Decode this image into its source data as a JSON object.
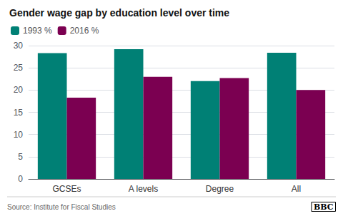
{
  "chart_data": {
    "type": "bar",
    "title": "Gender wage gap by education level over time",
    "categories": [
      "GCSEs",
      "A levels",
      "Degree",
      "All"
    ],
    "series": [
      {
        "name": "1993 %",
        "color": "#008075",
        "values": [
          28.3,
          29.2,
          22.0,
          28.4
        ]
      },
      {
        "name": "2016 %",
        "color": "#7b0051",
        "values": [
          18.3,
          23.0,
          22.7,
          20.0
        ]
      }
    ],
    "ylim": [
      0,
      30
    ],
    "yticks": [
      0,
      5,
      10,
      15,
      20,
      25,
      30
    ],
    "grid": true,
    "legend": "upper left",
    "annotations": [
      "Source: Institute for Fiscal Studies",
      "BBC"
    ]
  }
}
